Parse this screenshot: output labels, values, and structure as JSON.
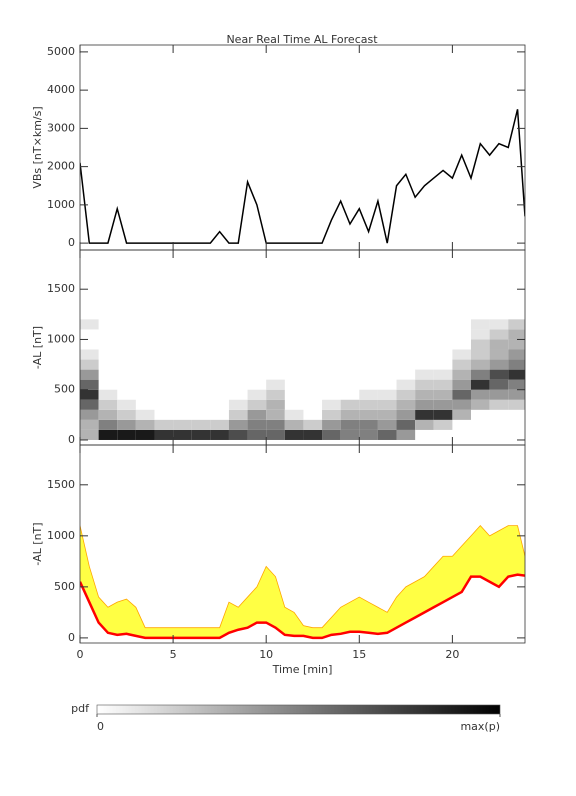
{
  "chart_data": [
    {
      "type": "line",
      "title": "Near Real Time AL Forecast",
      "ylabel": "VBs [nT×km/s]",
      "color": "#000000",
      "x": [
        0,
        0.5,
        1,
        1.5,
        2,
        2.5,
        3,
        3.5,
        4,
        4.5,
        5,
        5.5,
        6,
        6.5,
        7,
        7.5,
        8,
        8.5,
        9,
        9.5,
        10,
        10.5,
        11,
        11.5,
        12,
        12.5,
        13,
        13.5,
        14,
        14.5,
        15,
        15.5,
        16,
        16.5,
        17,
        17.5,
        18,
        18.5,
        19,
        19.5,
        20,
        20.5,
        21,
        21.5,
        22,
        22.5,
        23,
        23.5,
        23.9
      ],
      "values": [
        2100,
        0,
        0,
        0,
        900,
        0,
        0,
        0,
        0,
        0,
        0,
        0,
        0,
        0,
        0,
        300,
        0,
        0,
        1600,
        1000,
        0,
        0,
        0,
        0,
        0,
        0,
        0,
        600,
        1100,
        500,
        900,
        300,
        1100,
        0,
        1500,
        1800,
        1200,
        1500,
        1700,
        1900,
        1700,
        2300,
        1700,
        2600,
        2300,
        2600,
        2500,
        3500,
        700
      ],
      "xlim": [
        0,
        23.9
      ],
      "ylim": [
        -180,
        5180
      ],
      "yticks": [
        0,
        1000,
        2000,
        3000,
        4000,
        5000
      ]
    },
    {
      "type": "heatmap",
      "ylabel": "-AL [nT]",
      "x_bins": [
        0,
        1,
        2,
        3,
        4,
        5,
        6,
        7,
        8,
        9,
        10,
        11,
        12,
        13,
        14,
        15,
        16,
        17,
        18,
        19,
        20,
        21,
        22,
        23,
        24
      ],
      "y_bins": [
        0,
        100,
        200,
        300,
        400,
        500,
        600,
        700,
        800,
        900,
        1000,
        1100,
        1200
      ],
      "z": [
        [
          0.3,
          0.3,
          0.4,
          0.6,
          0.8,
          0.6,
          0.4,
          0.2,
          0.1,
          0,
          0,
          0.1
        ],
        [
          0.9,
          0.5,
          0.3,
          0.2,
          0.1,
          0,
          0,
          0,
          0,
          0,
          0,
          0
        ],
        [
          0.9,
          0.4,
          0.2,
          0.1,
          0,
          0,
          0,
          0,
          0,
          0,
          0,
          0
        ],
        [
          0.9,
          0.3,
          0.1,
          0,
          0,
          0,
          0,
          0,
          0,
          0,
          0,
          0
        ],
        [
          0.8,
          0.2,
          0,
          0,
          0,
          0,
          0,
          0,
          0,
          0,
          0,
          0
        ],
        [
          0.8,
          0.2,
          0,
          0,
          0,
          0,
          0,
          0,
          0,
          0,
          0,
          0
        ],
        [
          0.8,
          0.2,
          0,
          0,
          0,
          0,
          0,
          0,
          0,
          0,
          0,
          0
        ],
        [
          0.8,
          0.2,
          0,
          0,
          0,
          0,
          0,
          0,
          0,
          0,
          0,
          0
        ],
        [
          0.7,
          0.4,
          0.2,
          0.1,
          0,
          0,
          0,
          0,
          0,
          0,
          0,
          0
        ],
        [
          0.6,
          0.5,
          0.4,
          0.2,
          0.1,
          0,
          0,
          0,
          0,
          0,
          0,
          0
        ],
        [
          0.6,
          0.5,
          0.3,
          0.3,
          0.2,
          0.1,
          0,
          0,
          0,
          0,
          0,
          0
        ],
        [
          0.8,
          0.3,
          0.1,
          0,
          0,
          0,
          0,
          0,
          0,
          0,
          0,
          0
        ],
        [
          0.8,
          0.2,
          0,
          0,
          0,
          0,
          0,
          0,
          0,
          0,
          0,
          0
        ],
        [
          0.6,
          0.4,
          0.2,
          0.1,
          0,
          0,
          0,
          0,
          0,
          0,
          0,
          0
        ],
        [
          0.5,
          0.5,
          0.3,
          0.2,
          0,
          0,
          0,
          0,
          0,
          0,
          0,
          0
        ],
        [
          0.5,
          0.5,
          0.3,
          0.2,
          0.1,
          0,
          0,
          0,
          0,
          0,
          0,
          0
        ],
        [
          0.6,
          0.4,
          0.3,
          0.2,
          0.1,
          0,
          0,
          0,
          0,
          0,
          0,
          0
        ],
        [
          0.4,
          0.6,
          0.4,
          0.3,
          0.2,
          0.1,
          0,
          0,
          0,
          0,
          0,
          0
        ],
        [
          0,
          0.3,
          0.8,
          0.4,
          0.3,
          0.2,
          0.1,
          0,
          0,
          0,
          0,
          0
        ],
        [
          0,
          0.2,
          0.8,
          0.4,
          0.3,
          0.2,
          0.1,
          0,
          0,
          0,
          0,
          0
        ],
        [
          0,
          0,
          0.3,
          0.4,
          0.6,
          0.4,
          0.3,
          0.2,
          0.1,
          0,
          0,
          0
        ],
        [
          0,
          0,
          0,
          0.3,
          0.4,
          0.8,
          0.5,
          0.3,
          0.2,
          0.2,
          0.1,
          0.1
        ],
        [
          0,
          0,
          0,
          0.2,
          0.4,
          0.6,
          0.7,
          0.4,
          0.3,
          0.3,
          0.2,
          0.1
        ],
        [
          0,
          0,
          0,
          0.2,
          0.4,
          0.5,
          0.8,
          0.5,
          0.4,
          0.3,
          0.3,
          0.2
        ]
      ],
      "xlim": [
        0,
        23.9
      ],
      "ylim": [
        -50,
        1890
      ],
      "yticks": [
        0,
        500,
        1000,
        1500
      ],
      "colorbar_label": "pdf",
      "colorbar_ticks": [
        0,
        {
          "value": 1,
          "label": "max(p)"
        }
      ]
    },
    {
      "type": "band",
      "ylabel": "-AL [nT]",
      "xlabel": "Time [min]",
      "x": [
        0,
        0.5,
        1,
        1.5,
        2,
        2.5,
        3,
        3.5,
        4,
        4.5,
        5,
        5.5,
        6,
        6.5,
        7,
        7.5,
        8,
        8.5,
        9,
        9.5,
        10,
        10.5,
        11,
        11.5,
        12,
        12.5,
        13,
        13.5,
        14,
        14.5,
        15,
        15.5,
        16,
        16.5,
        17,
        17.5,
        18,
        18.5,
        19,
        19.5,
        20,
        20.5,
        21,
        21.5,
        22,
        22.5,
        23,
        23.5,
        23.9
      ],
      "band": {
        "color": "#ffff44",
        "edge_color": "#ffa500",
        "upper": [
          1100,
          700,
          400,
          300,
          350,
          380,
          300,
          100,
          100,
          100,
          100,
          100,
          100,
          100,
          100,
          100,
          350,
          300,
          400,
          500,
          700,
          600,
          300,
          250,
          120,
          100,
          100,
          200,
          300,
          350,
          400,
          350,
          300,
          250,
          400,
          500,
          550,
          600,
          700,
          800,
          800,
          900,
          1000,
          1100,
          1000,
          1050,
          1100,
          1100,
          800
        ]
      },
      "series": [
        {
          "color": "#ff0000",
          "values": [
            550,
            350,
            150,
            50,
            30,
            40,
            20,
            0,
            0,
            0,
            0,
            0,
            0,
            0,
            0,
            0,
            50,
            80,
            100,
            150,
            150,
            100,
            30,
            20,
            20,
            0,
            0,
            30,
            40,
            60,
            60,
            50,
            40,
            50,
            100,
            150,
            200,
            250,
            300,
            350,
            400,
            450,
            600,
            600,
            550,
            500,
            600,
            620,
            610
          ]
        }
      ],
      "xlim": [
        0,
        23.9
      ],
      "ylim": [
        -50,
        1890
      ],
      "xticks": [
        0,
        5,
        10,
        15,
        20
      ],
      "yticks": [
        0,
        500,
        1000,
        1500
      ]
    }
  ]
}
